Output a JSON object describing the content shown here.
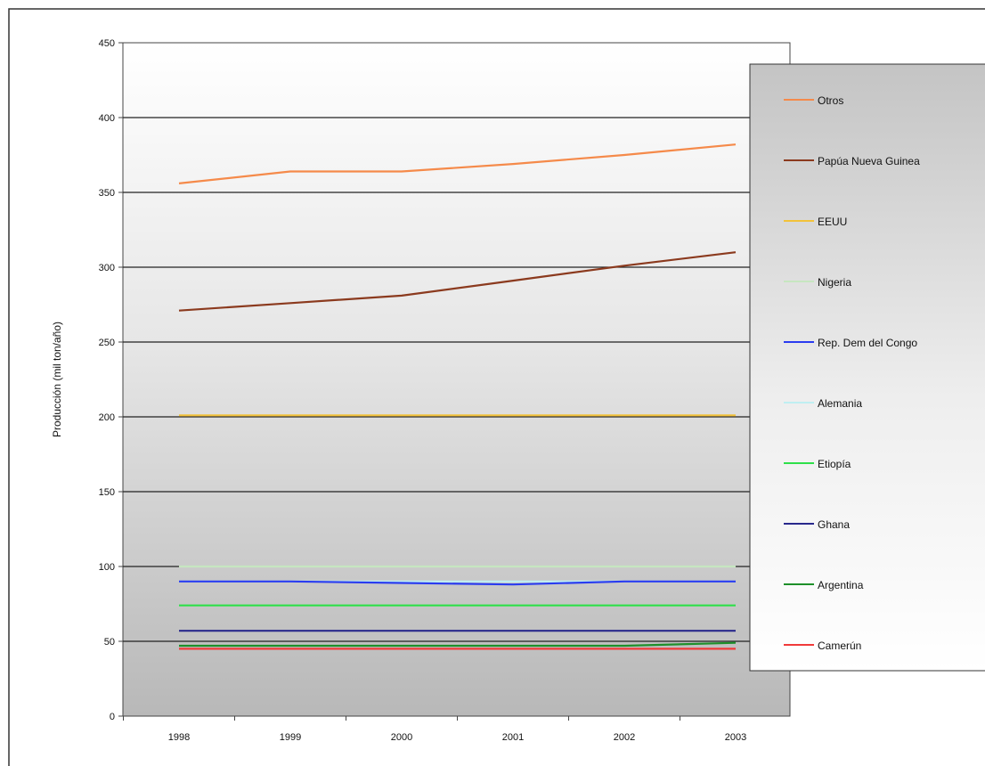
{
  "chart_data": {
    "type": "line",
    "title": "",
    "xlabel": "",
    "ylabel": "Producción (mil ton/año)",
    "x": [
      "1998",
      "1999",
      "2000",
      "2001",
      "2002",
      "2003"
    ],
    "ylim": [
      0,
      450
    ],
    "yticks": [
      0,
      50,
      100,
      150,
      200,
      250,
      300,
      350,
      400,
      450
    ],
    "grid": "horizontal",
    "legend_position": "right",
    "series": [
      {
        "name": "Otros",
        "color": "#f58a4a",
        "values": [
          356,
          364,
          364,
          369,
          375,
          382
        ]
      },
      {
        "name": "Papúa Nueva Guinea",
        "color": "#8b3a1e",
        "values": [
          271,
          276,
          281,
          291,
          301,
          310
        ]
      },
      {
        "name": "EEUU",
        "color": "#f2c23a",
        "values": [
          201,
          201,
          201,
          201,
          201,
          201
        ]
      },
      {
        "name": "Nigeria",
        "color": "#c6e6c0",
        "values": [
          100,
          100,
          100,
          100,
          100,
          100
        ]
      },
      {
        "name": "Rep. Dem del Congo",
        "color": "#2a3cf0",
        "values": [
          90,
          90,
          89,
          88,
          90,
          90
        ]
      },
      {
        "name": "Alemania",
        "color": "#bfeff2",
        "values": [
          90,
          90,
          90,
          90,
          90,
          90
        ]
      },
      {
        "name": "Etiopía",
        "color": "#2ee04a",
        "values": [
          74,
          74,
          74,
          74,
          74,
          74
        ]
      },
      {
        "name": "Ghana",
        "color": "#28288c",
        "values": [
          57,
          57,
          57,
          57,
          57,
          57
        ]
      },
      {
        "name": "Argentina",
        "color": "#1e8f2a",
        "values": [
          47,
          47,
          47,
          47,
          47,
          49
        ]
      },
      {
        "name": "Camerún",
        "color": "#f03a3a",
        "values": [
          45,
          45,
          45,
          45,
          45,
          45
        ]
      }
    ]
  }
}
